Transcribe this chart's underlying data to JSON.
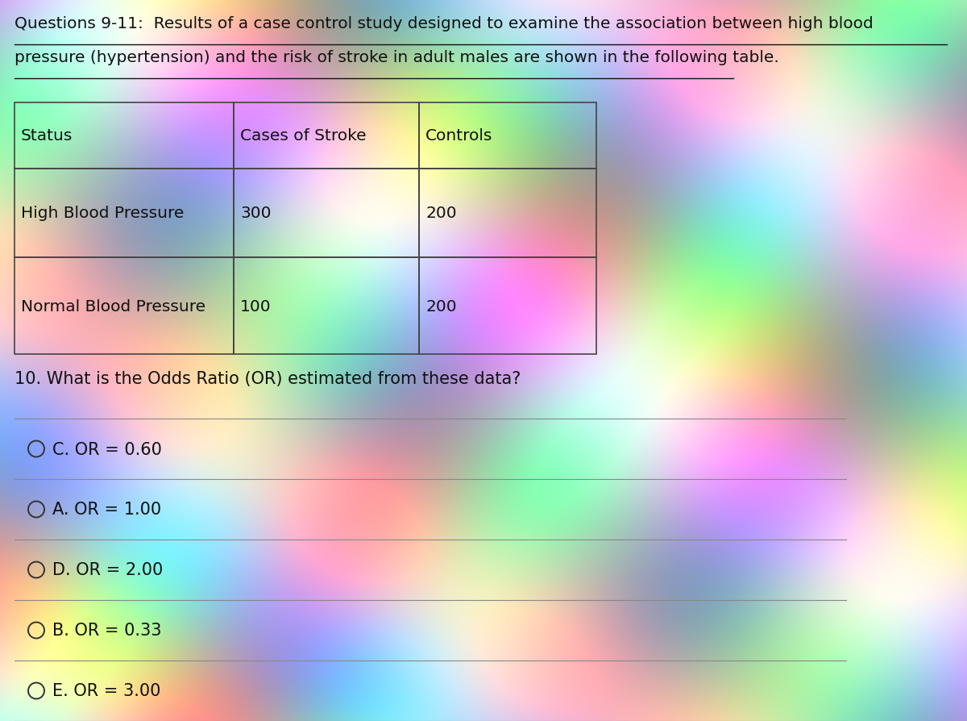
{
  "title_line1": "Questions 9-11:  Results of a case control study designed to examine the association between high blood",
  "title_line2": "pressure (hypertension) and the risk of stroke in adult males are shown in the following table.",
  "table_headers": [
    "Status",
    "Cases of Stroke",
    "Controls"
  ],
  "table_rows": [
    [
      "High Blood Pressure",
      "300",
      "200"
    ],
    [
      "Normal Blood Pressure",
      "100",
      "200"
    ]
  ],
  "question": "10. What is the Odds Ratio (OR) estimated from these data?",
  "options": [
    "C. OR = 0.60",
    "A. OR = 1.00",
    "D. OR = 2.00",
    "B. OR = 0.33",
    "E. OR = 3.00"
  ],
  "text_color": "#111111",
  "title_fontsize": 14.5,
  "table_fontsize": 14.5,
  "question_fontsize": 15.0,
  "option_fontsize": 15.0
}
